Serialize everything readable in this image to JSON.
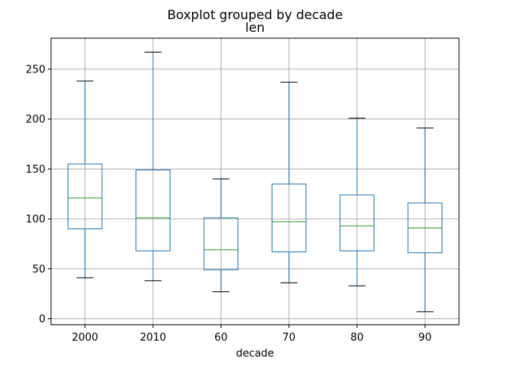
{
  "chart_data": {
    "type": "boxplot",
    "suptitle": "Boxplot grouped by decade",
    "title": "len",
    "xlabel": "decade",
    "ylabel": "",
    "categories": [
      "2000",
      "2010",
      "60",
      "70",
      "80",
      "90"
    ],
    "boxes": [
      {
        "category": "2000",
        "whisker_low": 41,
        "q1": 90,
        "median": 121,
        "q3": 155,
        "whisker_high": 238
      },
      {
        "category": "2010",
        "whisker_low": 38,
        "q1": 68,
        "median": 101,
        "q3": 149,
        "whisker_high": 267
      },
      {
        "category": "60",
        "whisker_low": 27,
        "q1": 49,
        "median": 69,
        "q3": 101,
        "whisker_high": 140
      },
      {
        "category": "70",
        "whisker_low": 36,
        "q1": 67,
        "median": 97,
        "q3": 135,
        "whisker_high": 237
      },
      {
        "category": "80",
        "whisker_low": 33,
        "q1": 68,
        "median": 93,
        "q3": 124,
        "whisker_high": 201
      },
      {
        "category": "90",
        "whisker_low": 7,
        "q1": 66,
        "median": 91,
        "q3": 116,
        "whisker_high": 191
      }
    ],
    "yticks": [
      0,
      50,
      100,
      150,
      200,
      250
    ],
    "ylim": [
      -6,
      281
    ],
    "grid": true,
    "colors": {
      "box": "#1f77b4",
      "median": "#2ca02c",
      "whisker_cap": "#000000",
      "grid": "#b0b0b0"
    }
  }
}
